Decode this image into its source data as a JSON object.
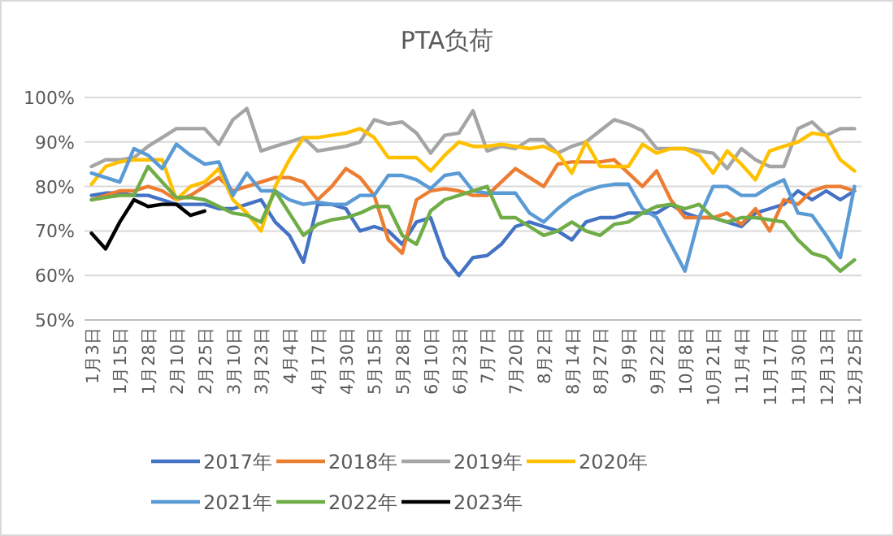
{
  "chart_data": {
    "type": "line",
    "title": "PTA负荷",
    "categories": [
      "1月3日",
      null,
      "1月15日",
      null,
      "1月28日",
      null,
      "2月10日",
      null,
      "2月25日",
      null,
      "3月10日",
      null,
      "3月23日",
      null,
      "4月4日",
      null,
      "4月17日",
      null,
      "4月30日",
      null,
      "5月15日",
      null,
      "5月28日",
      null,
      "6月10日",
      null,
      "6月23日",
      null,
      "7月7日",
      null,
      "7月20日",
      null,
      "8月2日",
      null,
      "8月14日",
      null,
      "8月27日",
      null,
      "9月9日",
      null,
      "9月22日",
      null,
      "10月8日",
      null,
      "10月21日",
      null,
      "11月4日",
      null,
      "11月17日",
      null,
      "11月30日",
      null,
      "12月13日",
      null,
      "12月25日"
    ],
    "ylim": [
      50,
      100
    ],
    "yticks": [
      {
        "value": 50,
        "label": "50%"
      },
      {
        "value": 60,
        "label": "60%"
      },
      {
        "value": 70,
        "label": "70%"
      },
      {
        "value": 80,
        "label": "80%"
      },
      {
        "value": 90,
        "label": "90%"
      },
      {
        "value": 100,
        "label": "100%"
      }
    ],
    "grid": "y",
    "legend": "bottom",
    "series": [
      {
        "name": "2017年",
        "color": "#4472c4",
        "values": [
          78,
          78.5,
          78.5,
          78,
          78,
          77,
          76,
          76,
          76,
          75,
          75,
          76,
          77,
          72,
          69,
          63,
          76,
          76,
          75,
          70,
          71,
          70,
          67,
          72,
          73,
          64,
          60,
          64,
          64.5,
          67,
          71,
          72,
          71,
          70,
          68,
          72,
          73,
          73,
          74,
          74,
          74,
          76,
          74,
          73,
          73,
          72,
          71,
          74,
          75,
          76,
          79,
          77,
          79,
          77,
          79
        ]
      },
      {
        "name": "2018年",
        "color": "#ed7d31",
        "values": [
          77,
          78,
          79,
          79,
          80,
          79,
          77,
          78,
          80,
          82,
          79,
          80,
          81,
          82,
          82,
          81,
          77,
          80,
          84,
          82,
          78,
          68,
          65,
          77,
          79,
          79.5,
          79,
          78,
          78,
          81,
          84,
          82,
          80,
          85,
          85.5,
          85.5,
          85.5,
          86,
          83,
          80,
          83.5,
          77,
          73,
          73,
          73,
          74,
          71.5,
          75,
          70,
          77,
          76,
          79,
          80,
          80,
          79
        ]
      },
      {
        "name": "2019年",
        "color": "#a5a5a5",
        "values": [
          84.5,
          86,
          86,
          86.5,
          89,
          91,
          93,
          93,
          93,
          89.5,
          95,
          97.5,
          88,
          89,
          90,
          91,
          88,
          88.5,
          89,
          90,
          95,
          94,
          94.5,
          92,
          87.5,
          91.5,
          92,
          97,
          88,
          89,
          88.5,
          90.5,
          90.5,
          87.5,
          89,
          90,
          92.5,
          95,
          94,
          92.5,
          88.5,
          88.5,
          88.5,
          88,
          87.5,
          84,
          88.5,
          86,
          84.5,
          84.5,
          93,
          94.5,
          91.5,
          93,
          93
        ]
      },
      {
        "name": "2020年",
        "color": "#ffc000",
        "values": [
          80.5,
          84.5,
          85.5,
          86,
          86,
          86,
          77,
          80,
          81,
          84,
          77,
          74,
          70,
          80,
          86,
          91,
          91,
          91.5,
          92,
          93,
          91,
          86.5,
          86.5,
          86.5,
          83.5,
          87,
          90,
          89,
          89,
          89.5,
          89,
          88.5,
          89,
          87.5,
          83,
          90,
          84.5,
          84.5,
          84.5,
          89.5,
          87.5,
          88.5,
          88.5,
          87,
          83,
          88,
          85,
          81.5,
          88,
          89,
          90,
          92,
          91.5,
          86,
          83.5
        ]
      },
      {
        "name": "2021年",
        "color": "#5b9bd5",
        "values": [
          83,
          82,
          81,
          88.5,
          87,
          84,
          89.5,
          87,
          85,
          85.5,
          78,
          83,
          79,
          79,
          77,
          76,
          76.5,
          76,
          76,
          78,
          78,
          82.5,
          82.5,
          81.5,
          79.5,
          82.5,
          83,
          79,
          78.5,
          78.5,
          78.5,
          74,
          72,
          75,
          77.5,
          79,
          80,
          80.5,
          80.5,
          75,
          73,
          67,
          61,
          73,
          80,
          80,
          78,
          78,
          80,
          81.5,
          74,
          73.5,
          69,
          64,
          80
        ]
      },
      {
        "name": "2022年",
        "color": "#70ad47",
        "values": [
          77,
          77.5,
          78,
          78,
          84.5,
          81,
          77.5,
          77.5,
          77,
          75.5,
          74,
          73.5,
          72,
          79,
          74,
          69,
          71.5,
          72.5,
          73,
          74,
          75.5,
          75.5,
          69,
          67,
          74.5,
          77,
          78,
          79,
          80,
          73,
          73,
          71,
          69,
          70,
          72,
          70,
          69,
          71.5,
          72,
          74,
          75.5,
          76,
          75,
          76,
          73,
          72,
          73,
          73,
          72.5,
          72,
          68,
          65,
          64,
          61,
          63.5
        ]
      },
      {
        "name": "2023年",
        "color": "#000000",
        "values": [
          69.5,
          66,
          72,
          77,
          75.5,
          76,
          76,
          73.5,
          74.5,
          null,
          null,
          null,
          null,
          null,
          null,
          null,
          null,
          null,
          null,
          null,
          null,
          null,
          null,
          null,
          null,
          null,
          null,
          null,
          null,
          null,
          null,
          null,
          null,
          null,
          null,
          null,
          null,
          null,
          null,
          null,
          null,
          null,
          null,
          null,
          null,
          null,
          null,
          null,
          null,
          null,
          null,
          null,
          null,
          null,
          null
        ]
      }
    ]
  }
}
